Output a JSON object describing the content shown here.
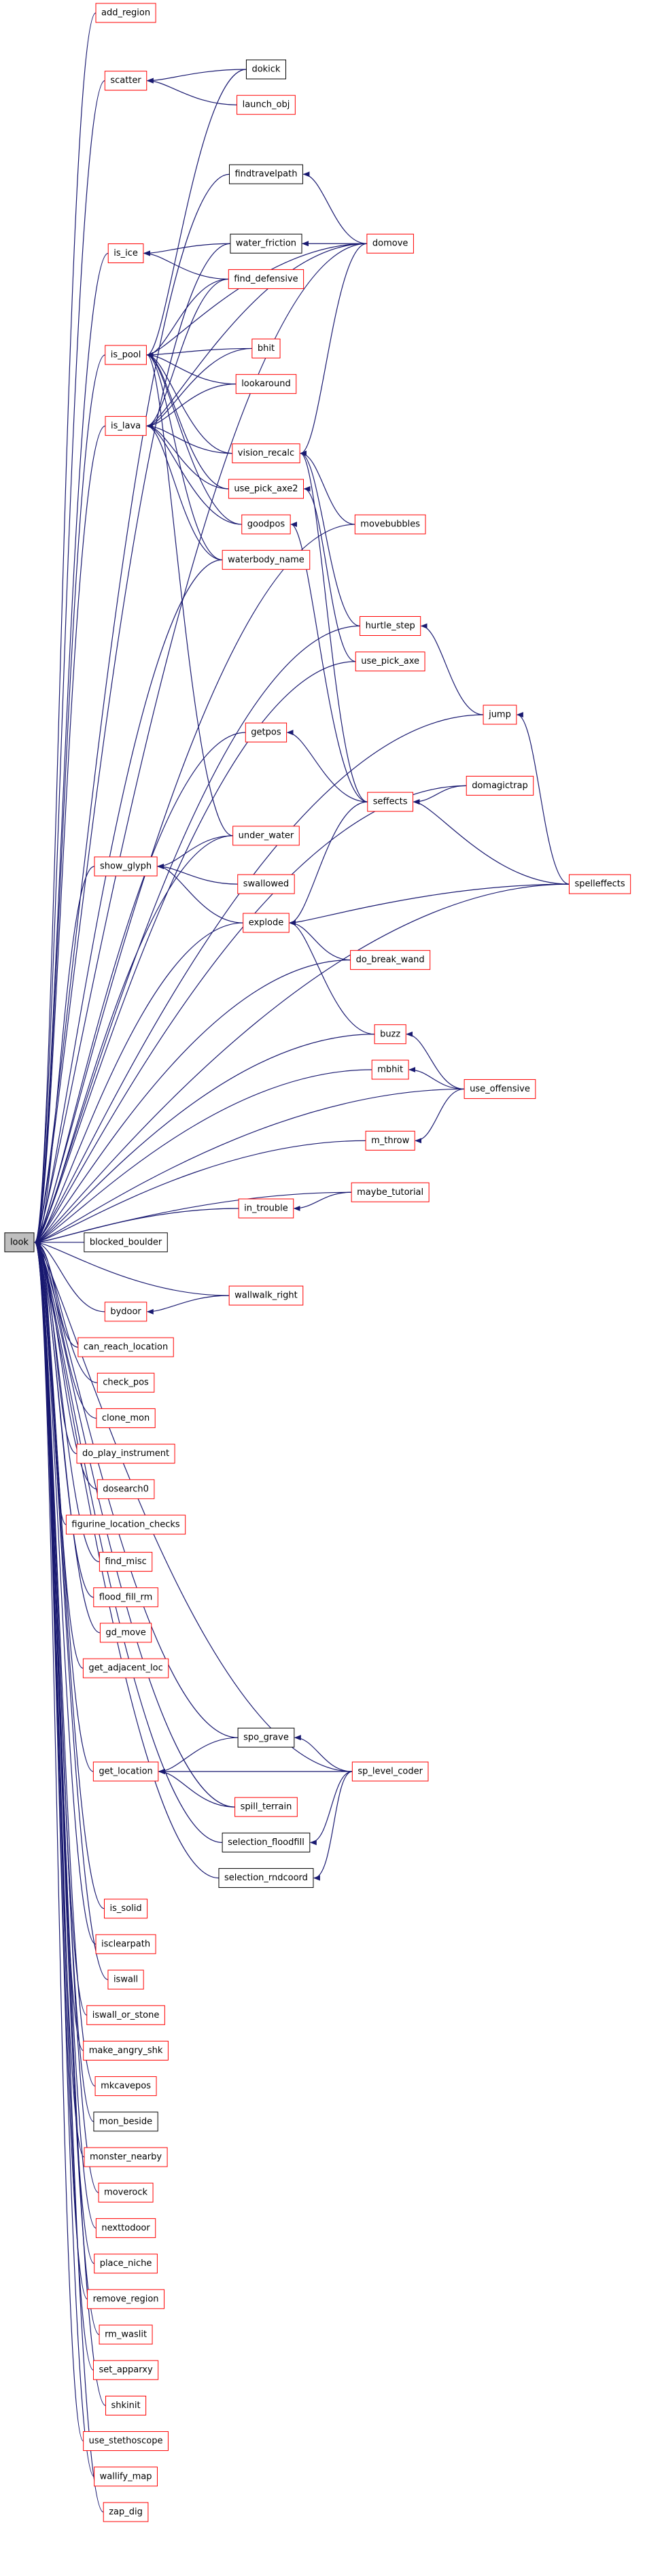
{
  "nodes": [
    "look",
    "add_region",
    "scatter",
    "dokick",
    "launch_obj",
    "findtravelpath",
    "is_ice",
    "water_friction",
    "domove",
    "find_defensive",
    "is_pool",
    "bhit",
    "lookaround",
    "is_lava",
    "vision_recalc",
    "use_pick_axe2",
    "movebubbles",
    "goodpos",
    "waterbody_name",
    "hurtle_step",
    "use_pick_axe",
    "jump",
    "getpos",
    "domagictrap",
    "seffects",
    "under_water",
    "show_glyph",
    "swallowed",
    "spelleffects",
    "explode",
    "do_break_wand",
    "buzz",
    "mbhit",
    "use_offensive",
    "m_throw",
    "maybe_tutorial",
    "in_trouble",
    "blocked_boulder",
    "wallwalk_right",
    "bydoor",
    "can_reach_location",
    "check_pos",
    "clone_mon",
    "do_play_instrument",
    "dosearch0",
    "figurine_location_checks",
    "find_misc",
    "flood_fill_rm",
    "gd_move",
    "get_adjacent_loc",
    "spo_grave",
    "get_location",
    "sp_level_coder",
    "spill_terrain",
    "selection_floodfill",
    "selection_rndcoord",
    "is_solid",
    "isclearpath",
    "iswall",
    "iswall_or_stone",
    "make_angry_shk",
    "mkcavepos",
    "mon_beside",
    "monster_nearby",
    "moverock",
    "nexttodoor",
    "place_niche",
    "remove_region",
    "rm_waslit",
    "set_apparxy",
    "shkinit",
    "use_stethoscope",
    "wallify_map",
    "zap_dig"
  ]
}
